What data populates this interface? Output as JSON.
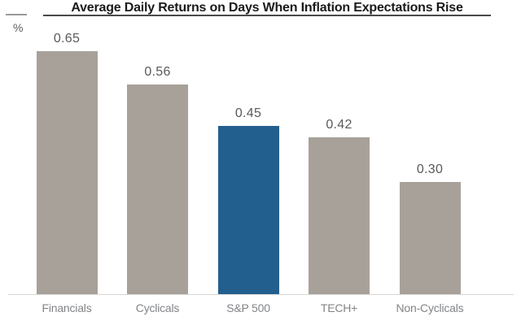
{
  "chart_data": {
    "type": "bar",
    "title": "Average Daily Returns on Days When Inflation Expectations Rise",
    "ylabel": "%",
    "categories": [
      "Financials",
      "Cyclicals",
      "S&P 500",
      "TECH+",
      "Non-Cyclicals"
    ],
    "values": [
      0.65,
      0.56,
      0.45,
      0.42,
      0.3
    ],
    "value_labels": [
      "0.65",
      "0.56",
      "0.45",
      "0.42",
      "0.30"
    ],
    "highlighted_category": "S&P 500",
    "ylim": [
      0,
      0.7
    ],
    "grid": false,
    "legend": false,
    "colors": {
      "default_bar": "#a8a19a",
      "highlight_bar": "#235f8e",
      "value_label": "#58595b",
      "category_label": "#828487",
      "axis_line": "#d8d6d3",
      "title_text": "#1a1a1a"
    }
  }
}
